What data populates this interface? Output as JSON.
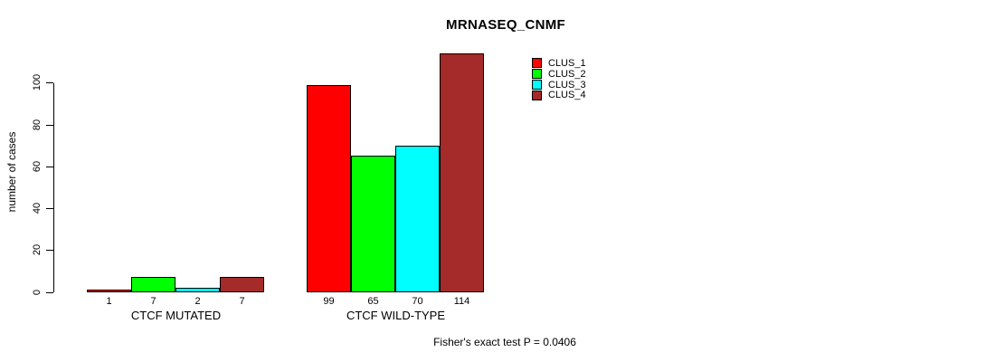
{
  "chart_data": {
    "type": "bar",
    "title": "MRNASEQ_CNMF",
    "ylabel": "number of cases",
    "xlabel": "",
    "categories": [
      "CTCF MUTATED",
      "CTCF WILD-TYPE"
    ],
    "series": [
      {
        "name": "CLUS_1",
        "color": "#FF0000",
        "values": [
          1,
          99
        ]
      },
      {
        "name": "CLUS_2",
        "color": "#00FF00",
        "values": [
          7,
          65
        ]
      },
      {
        "name": "CLUS_3",
        "color": "#00FFFF",
        "values": [
          2,
          70
        ]
      },
      {
        "name": "CLUS_4",
        "color": "#A52A2A",
        "values": [
          7,
          114
        ]
      }
    ],
    "bar_value_labels": {
      "CTCF MUTATED": [
        1,
        7,
        2,
        7
      ],
      "CTCF WILD-TYPE": [
        99,
        65,
        70,
        114
      ]
    },
    "yticks": [
      0,
      20,
      40,
      60,
      80,
      100
    ],
    "ylim": [
      0,
      114
    ],
    "grid": false,
    "legend_position": "top-right",
    "annotation": "Fisher's exact test P = 0.0406",
    "bar_border_color": "#000000",
    "axis_color": "#000000",
    "background_color": "#FFFFFF"
  }
}
